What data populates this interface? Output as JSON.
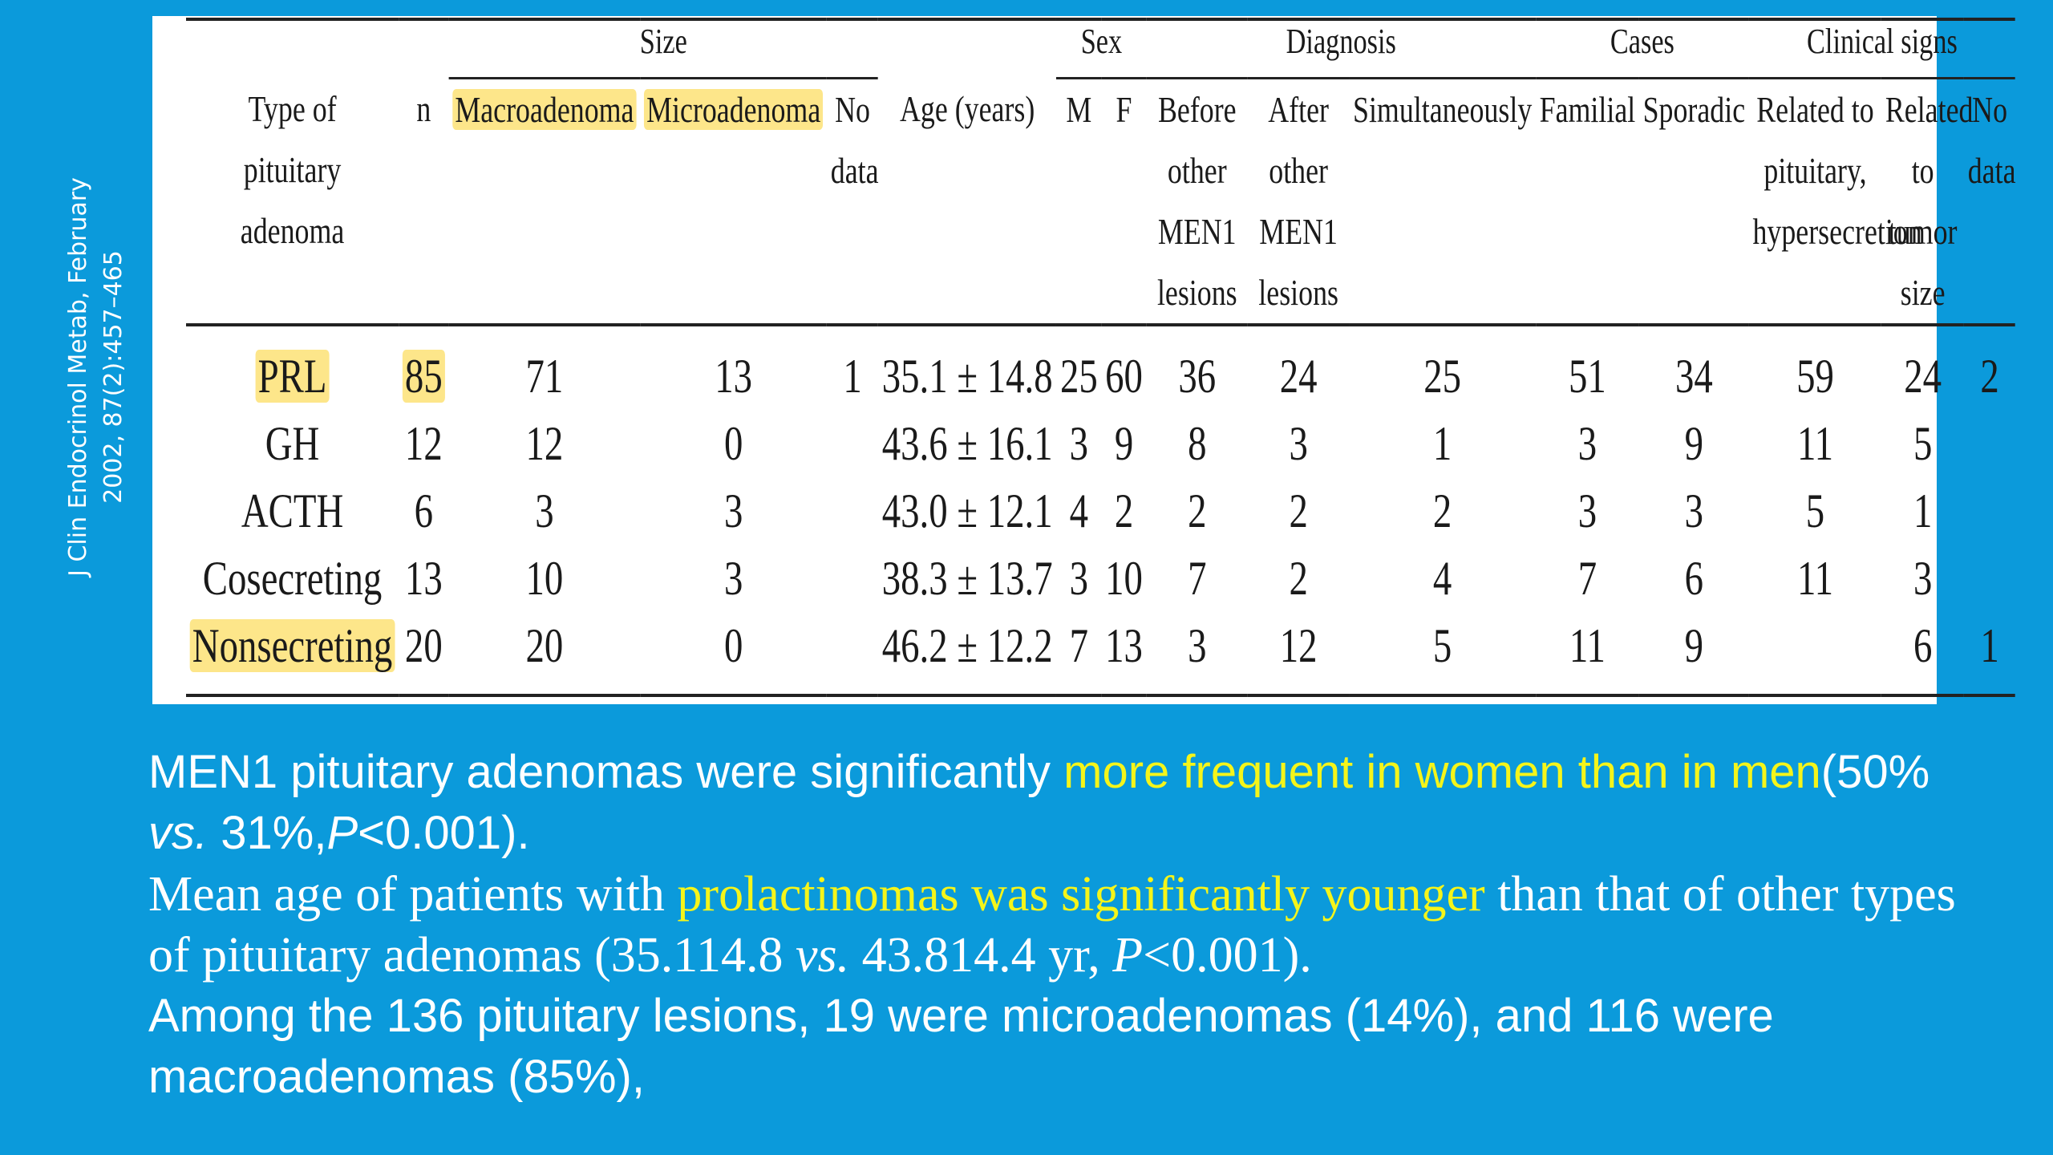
{
  "citation": {
    "line1": "J Clin Endocrinol Metab, February",
    "line2": "2002, 87(2):457–465"
  },
  "table": {
    "group_headers": {
      "size": "Size",
      "sex": "Sex",
      "diagnosis": "Diagnosis",
      "cases": "Cases",
      "clinical_signs": "Clinical signs"
    },
    "columns": {
      "type": "Type of pituitary adenoma",
      "n": "n",
      "macro": "Macroadenoma",
      "micro": "Microadenoma",
      "size_nodata": "No data",
      "age": "Age (years)",
      "m": "M",
      "f": "F",
      "before": "Before other MEN1 lesions",
      "after": "After other MEN1 lesions",
      "simult": "Simultaneously",
      "familial": "Familial",
      "sporadic": "Sporadic",
      "related_pit": "Related to pituitary, hypersecretion",
      "related_tumor": "Related to tumor size",
      "clin_nodata": "No data"
    },
    "rows": [
      {
        "type": "PRL",
        "n": "85",
        "macro": "71",
        "micro": "13",
        "size_nodata": "1",
        "age": "35.1 ± 14.8",
        "m": "25",
        "f": "60",
        "before": "36",
        "after": "24",
        "simult": "25",
        "familial": "51",
        "sporadic": "34",
        "related_pit": "59",
        "related_tumor": "24",
        "clin_nodata": "2"
      },
      {
        "type": "GH",
        "n": "12",
        "macro": "12",
        "micro": "0",
        "size_nodata": "",
        "age": "43.6 ± 16.1",
        "m": "3",
        "f": "9",
        "before": "8",
        "after": "3",
        "simult": "1",
        "familial": "3",
        "sporadic": "9",
        "related_pit": "11",
        "related_tumor": "5",
        "clin_nodata": ""
      },
      {
        "type": "ACTH",
        "n": "6",
        "macro": "3",
        "micro": "3",
        "size_nodata": "",
        "age": "43.0 ± 12.1",
        "m": "4",
        "f": "2",
        "before": "2",
        "after": "2",
        "simult": "2",
        "familial": "3",
        "sporadic": "3",
        "related_pit": "5",
        "related_tumor": "1",
        "clin_nodata": ""
      },
      {
        "type": "Cosecreting",
        "n": "13",
        "macro": "10",
        "micro": "3",
        "size_nodata": "",
        "age": "38.3 ± 13.7",
        "m": "3",
        "f": "10",
        "before": "7",
        "after": "2",
        "simult": "4",
        "familial": "7",
        "sporadic": "6",
        "related_pit": "11",
        "related_tumor": "3",
        "clin_nodata": ""
      },
      {
        "type": "Nonsecreting",
        "n": "20",
        "macro": "20",
        "micro": "0",
        "size_nodata": "",
        "age": "46.2 ± 12.2",
        "m": "7",
        "f": "13",
        "before": "3",
        "after": "12",
        "simult": "5",
        "familial": "11",
        "sporadic": "9",
        "related_pit": "",
        "related_tumor": "6",
        "clin_nodata": "1"
      }
    ]
  },
  "text": {
    "p1_a": "MEN1 pituitary adenomas were significantly ",
    "p1_highlight": "more frequent in women than in men",
    "p1_b": "(50% ",
    "p1_vs": "vs.",
    "p1_c": " 31%,",
    "p1_p": "P",
    "p1_d": "<0.001).",
    "p2_a": "Mean age of patients with ",
    "p2_highlight": "prolactinomas was significantly younger",
    "p2_b": " than that of other types of pituitary adenomas (35.114.8 ",
    "p2_vs": "vs.",
    "p2_c": " 43.814.4 yr, ",
    "p2_p": "P",
    "p2_d": "<0.001).",
    "p3": "Among the 136 pituitary lesions, 19 were microadenomas (14%), and 116 were macroadenomas (85%),"
  },
  "colors": {
    "background": "#0b9adb",
    "highlight_text": "#f5f51a",
    "cell_highlight": "#fde68a"
  }
}
